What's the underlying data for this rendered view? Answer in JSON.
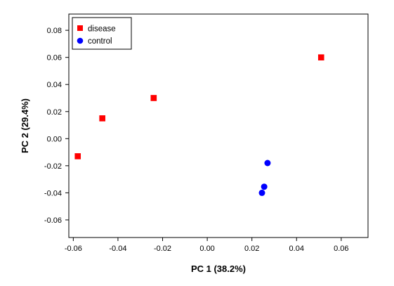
{
  "chart_data": {
    "type": "scatter",
    "xlabel": "PC 1 (38.2%)",
    "ylabel": "PC 2 (29.4%)",
    "xlim": [
      -0.062,
      0.072
    ],
    "ylim": [
      -0.073,
      0.092
    ],
    "xticks": [
      "-0.06",
      "-0.04",
      "-0.02",
      "0.00",
      "0.02",
      "0.04",
      "0.06"
    ],
    "xtick_values": [
      -0.06,
      -0.04,
      -0.02,
      0.0,
      0.02,
      0.04,
      0.06
    ],
    "yticks": [
      "0.08",
      "0.06",
      "0.04",
      "0.02",
      "0.00",
      "-0.02",
      "-0.04",
      "-0.06"
    ],
    "ytick_values": [
      0.08,
      0.06,
      0.04,
      0.02,
      0.0,
      -0.02,
      -0.04,
      -0.06
    ],
    "grid": false,
    "legend_position": "top-left",
    "series": [
      {
        "name": "disease",
        "marker": "square",
        "color": "#ff0000",
        "points": [
          {
            "x": -0.058,
            "y": -0.013
          },
          {
            "x": -0.047,
            "y": 0.015
          },
          {
            "x": -0.024,
            "y": 0.03
          },
          {
            "x": 0.051,
            "y": 0.06
          }
        ]
      },
      {
        "name": "control",
        "marker": "circle",
        "color": "#0000ff",
        "points": [
          {
            "x": 0.027,
            "y": -0.018
          },
          {
            "x": 0.0255,
            "y": -0.0355
          },
          {
            "x": 0.0245,
            "y": -0.04
          }
        ]
      }
    ]
  }
}
